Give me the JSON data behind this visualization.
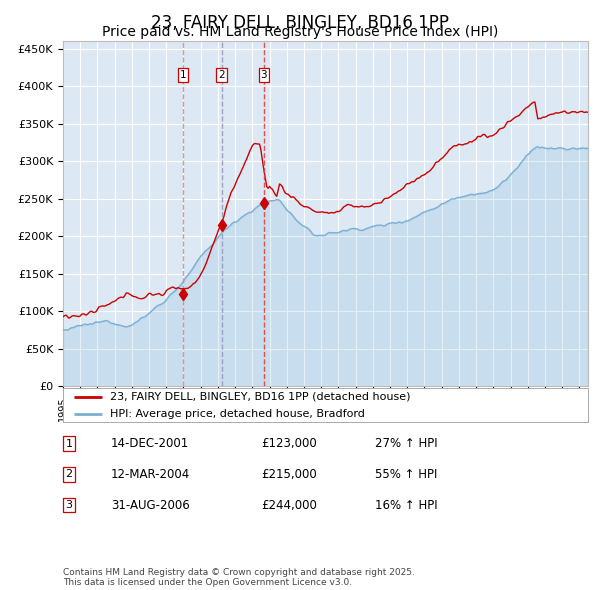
{
  "title": "23, FAIRY DELL, BINGLEY, BD16 1PP",
  "subtitle": "Price paid vs. HM Land Registry's House Price Index (HPI)",
  "title_fontsize": 12,
  "subtitle_fontsize": 10,
  "ylabel_ticks": [
    "£0",
    "£50K",
    "£100K",
    "£150K",
    "£200K",
    "£250K",
    "£300K",
    "£350K",
    "£400K",
    "£450K"
  ],
  "ytick_vals": [
    0,
    50000,
    100000,
    150000,
    200000,
    250000,
    300000,
    350000,
    400000,
    450000
  ],
  "ylim": [
    0,
    460000
  ],
  "xlim_start": 1995.0,
  "xlim_end": 2025.5,
  "bg_color": "#dce9f5",
  "grid_color": "#ffffff",
  "red_line_color": "#cc0000",
  "blue_line_color": "#7bafd4",
  "sale_points": [
    {
      "year": 2001.96,
      "price": 123000,
      "label": "1"
    },
    {
      "year": 2004.21,
      "price": 215000,
      "label": "2"
    },
    {
      "year": 2006.67,
      "price": 244000,
      "label": "3"
    }
  ],
  "legend_line1": "23, FAIRY DELL, BINGLEY, BD16 1PP (detached house)",
  "legend_line2": "HPI: Average price, detached house, Bradford",
  "table_rows": [
    {
      "num": "1",
      "date": "14-DEC-2001",
      "price": "£123,000",
      "hpi": "27% ↑ HPI"
    },
    {
      "num": "2",
      "date": "12-MAR-2004",
      "price": "£215,000",
      "hpi": "55% ↑ HPI"
    },
    {
      "num": "3",
      "date": "31-AUG-2006",
      "price": "£244,000",
      "hpi": "16% ↑ HPI"
    }
  ],
  "footnote": "Contains HM Land Registry data © Crown copyright and database right 2025.\nThis data is licensed under the Open Government Licence v3.0."
}
